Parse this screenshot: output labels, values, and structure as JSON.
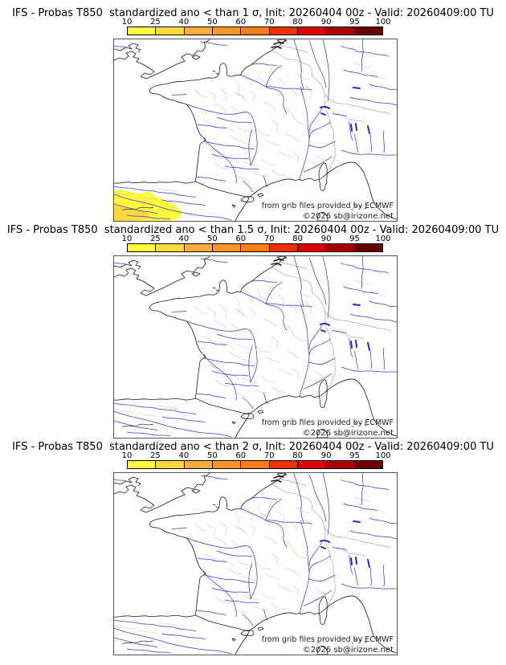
{
  "page": {
    "background": "#ffffff"
  },
  "colorbar": {
    "ticks": [
      "10",
      "25",
      "40",
      "50",
      "60",
      "70",
      "80",
      "90",
      "95",
      "100"
    ],
    "colors": [
      "#FFFA3C",
      "#FFD93C",
      "#FFAB3C",
      "#FF9428",
      "#FF7D14",
      "#F03000",
      "#DE0000",
      "#A80000",
      "#680000"
    ]
  },
  "panels": [
    {
      "title": "IFS - Probas T850  standardized ano < than 1 σ, Init: 20260404 00z - Valid: 20260409:00 TU",
      "has_anomaly_area": true
    },
    {
      "title": "IFS - Probas T850  standardized ano < than 1.5 σ, Init: 20260404 00z - Valid: 20260409:00 TU",
      "has_anomaly_area": false
    },
    {
      "title": "IFS - Probas T850  standardized ano < than 2 σ, Init: 20260404 00z - Valid: 20260409:00 TU",
      "has_anomaly_area": false
    }
  ],
  "map": {
    "credit_line1": "from grib files provided by ECMWF",
    "credit_line2": "©2026 sb@irizone.net",
    "coast_color": "#1a1a1a",
    "country_border_color": "#a8a8a8",
    "department_border_color": "#c2c2c2",
    "river_color": "#3c3ce0",
    "lake_color": "#2828c8"
  }
}
